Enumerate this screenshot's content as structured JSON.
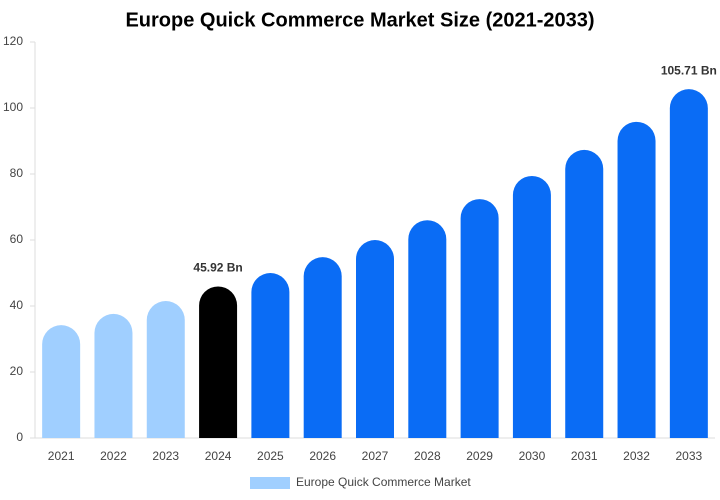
{
  "chart_data": {
    "type": "bar",
    "title": "Europe Quick Commerce Market Size (2021-2033)",
    "categories": [
      "2021",
      "2022",
      "2023",
      "2024",
      "2025",
      "2026",
      "2027",
      "2028",
      "2029",
      "2030",
      "2031",
      "2032",
      "2033"
    ],
    "series": [
      {
        "name": "Europe Quick Commerce Market",
        "color": "#a0cfff",
        "values": [
          34.2,
          37.6,
          41.5,
          45.92,
          50,
          54.8,
          60,
          66,
          72.4,
          79.4,
          87.3,
          95.8,
          105.71
        ],
        "value_labels": [
          null,
          null,
          null,
          "45.92 Bn",
          null,
          null,
          null,
          null,
          null,
          null,
          null,
          null,
          "105.71 Bn"
        ],
        "colors": [
          "#a0cfff",
          "#a0cfff",
          "#a0cfff",
          "#000000",
          "#0a6cf5",
          "#0a6cf5",
          "#0a6cf5",
          "#0a6cf5",
          "#0a6cf5",
          "#0a6cf5",
          "#0a6cf5",
          "#0a6cf5",
          "#0a6cf5"
        ]
      }
    ],
    "ylim": [
      0,
      120
    ],
    "yticks": [
      0,
      20,
      40,
      60,
      80,
      100,
      120
    ],
    "grid": false
  }
}
